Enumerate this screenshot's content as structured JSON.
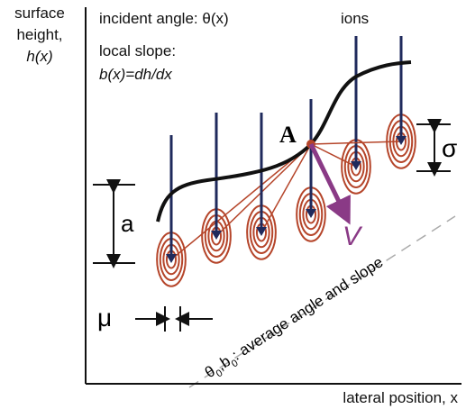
{
  "y_axis_label": {
    "line1": "surface",
    "line2": "height,",
    "line3": "h(x)"
  },
  "x_axis_label": "lateral position, x",
  "incident_angle": "incident angle: θ(x)",
  "local_slope": {
    "line1": "local slope:",
    "line2": "b(x)=dh/dx"
  },
  "ions": "ions",
  "point_label": "A",
  "sigma": "σ",
  "a": "a",
  "velocity": "V",
  "mu": "μ",
  "average": {
    "theta": "θ",
    "theta_sub": "0",
    "sep": ",",
    "b": "b",
    "b_sub": "0",
    "text": ": average angle and slope"
  }
}
